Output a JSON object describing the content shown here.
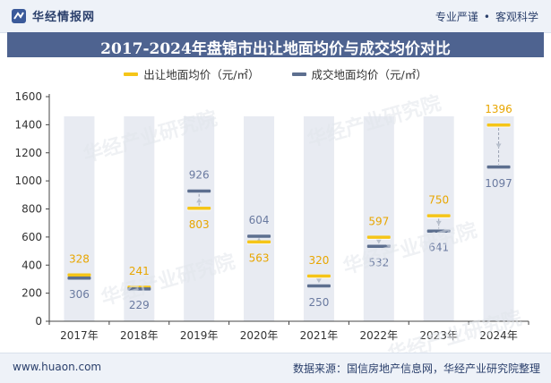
{
  "header": {
    "brand": "华经情报网",
    "tagline_left": "专业严谨",
    "tagline_right": "客观科学",
    "logo_icon": "huajing-logo-icon"
  },
  "footer": {
    "site": "www.huaon.com",
    "source": "数据来源：国信房地产信息网，华经产业研究院整理"
  },
  "watermark": "华经产业研究院",
  "colors": {
    "series1": "#f5c518",
    "series2": "#5d6f8f",
    "background_bar": "#e8ebf2",
    "title_bar": "#4e6390",
    "label_gold": "#e8a600",
    "label_blue": "#6a7aa0"
  },
  "chart_data": {
    "type": "line",
    "title": "2017-2024年盘锦市出让地面均价与成交均价对比",
    "categories": [
      "2017年",
      "2018年",
      "2019年",
      "2020年",
      "2021年",
      "2022年",
      "2023年",
      "2024年"
    ],
    "series": [
      {
        "name": "出让地面均价（元/㎡）",
        "values": [
          328,
          241,
          803,
          563,
          320,
          597,
          750,
          1396
        ]
      },
      {
        "name": "成交地面均价（元/㎡）",
        "values": [
          306,
          229,
          926,
          604,
          250,
          532,
          641,
          1097
        ]
      }
    ],
    "ylim": [
      0,
      1600
    ],
    "yticks": [
      0,
      200,
      400,
      600,
      800,
      1000,
      1200,
      1400,
      1600
    ],
    "legend_position": "top-center",
    "grid": false
  }
}
